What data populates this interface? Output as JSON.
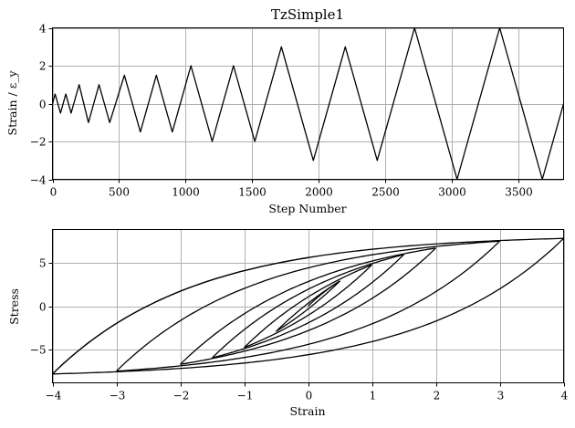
{
  "chart_data": [
    {
      "type": "line",
      "title": "TzSimple1",
      "xlabel": "Step Number",
      "ylabel": "Strain / ε_y",
      "xlim": [
        0,
        3840
      ],
      "ylim": [
        -4,
        4
      ],
      "xticks": [
        "0",
        "500",
        "1000",
        "1500",
        "2000",
        "2500",
        "3000",
        "3500"
      ],
      "xtick_values": [
        0,
        500,
        1000,
        1500,
        2000,
        2500,
        3000,
        3500
      ],
      "yticks": [
        "−4",
        "−2",
        "0",
        "2",
        "4"
      ],
      "ytick_values": [
        -4,
        -2,
        0,
        2,
        4
      ],
      "grid": true,
      "series": [
        {
          "x": [
            0,
            20,
            60,
            100,
            140,
            200,
            270,
            350,
            430,
            540,
            660,
            780,
            900,
            1040,
            1200,
            1360,
            1520,
            1720,
            1960,
            2200,
            2440,
            2720,
            3040,
            3360,
            3680,
            3840
          ],
          "y": [
            0,
            0.5,
            -0.5,
            0.5,
            -0.5,
            1,
            -1,
            1,
            -1,
            1.5,
            -1.5,
            1.5,
            -1.5,
            2,
            -2,
            2,
            -2,
            3,
            -3,
            3,
            -3,
            4,
            -4,
            4,
            -4,
            0
          ]
        }
      ]
    },
    {
      "type": "line",
      "title": "",
      "xlabel": "Strain",
      "ylabel": "Stress",
      "xlim": [
        -4,
        4
      ],
      "ylim": [
        -8.8,
        8.8
      ],
      "xticks": [
        "−4",
        "−3",
        "−2",
        "−1",
        "0",
        "1",
        "2",
        "3",
        "4"
      ],
      "xtick_values": [
        -4,
        -3,
        -2,
        -1,
        0,
        1,
        2,
        3,
        4
      ],
      "yticks": [
        "−5",
        "0",
        "5"
      ],
      "ytick_values": [
        -5,
        0,
        5
      ],
      "grid": true,
      "ymax_stress": 8.0,
      "cycle_amplitudes": [
        0.5,
        1,
        1.5,
        2,
        3,
        4
      ]
    }
  ]
}
